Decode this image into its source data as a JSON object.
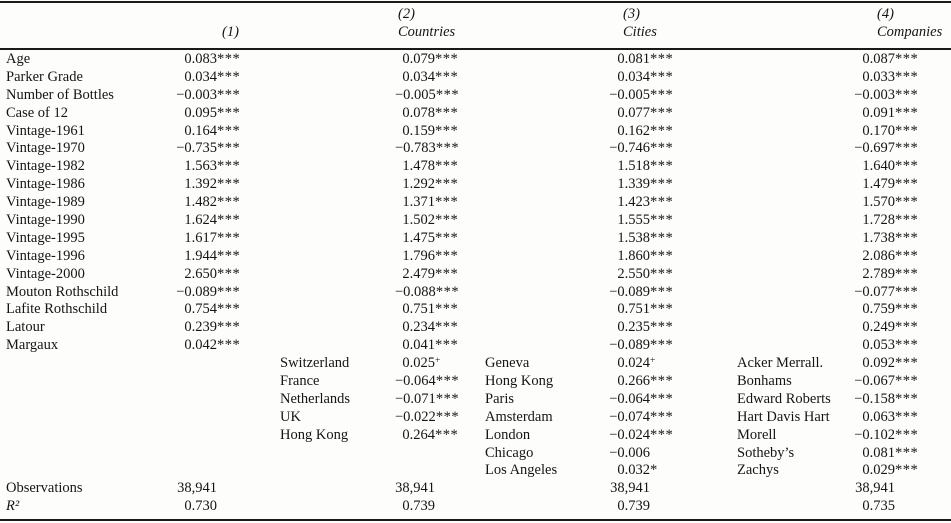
{
  "table": {
    "header": {
      "cols": [
        {
          "num": "(1)",
          "title": ""
        },
        {
          "num": "(2)",
          "title": "Countries"
        },
        {
          "num": "(3)",
          "title": "Cities"
        },
        {
          "num": "(4)",
          "title": "Companies"
        }
      ]
    },
    "rows": [
      {
        "label": "Age",
        "col1": {
          "value": "0.083",
          "stars": "***"
        },
        "col2": {
          "value": "0.079",
          "stars": "***"
        },
        "col3": {
          "value": "0.081",
          "stars": "***"
        },
        "col4": {
          "value": "0.087",
          "stars": "***"
        }
      },
      {
        "label": "Parker Grade",
        "col1": {
          "value": "0.034",
          "stars": "***"
        },
        "col2": {
          "value": "0.034",
          "stars": "***"
        },
        "col3": {
          "value": "0.034",
          "stars": "***"
        },
        "col4": {
          "value": "0.033",
          "stars": "***"
        }
      },
      {
        "label": "Number of Bottles",
        "col1": {
          "value": "−0.003",
          "stars": "***"
        },
        "col2": {
          "value": "−0.005",
          "stars": "***"
        },
        "col3": {
          "value": "−0.005",
          "stars": "***"
        },
        "col4": {
          "value": "−0.003",
          "stars": "***"
        }
      },
      {
        "label": "Case of 12",
        "col1": {
          "value": "0.095",
          "stars": "***"
        },
        "col2": {
          "value": "0.078",
          "stars": "***"
        },
        "col3": {
          "value": "0.077",
          "stars": "***"
        },
        "col4": {
          "value": "0.091",
          "stars": "***"
        }
      },
      {
        "label": "Vintage-1961",
        "col1": {
          "value": "0.164",
          "stars": "***"
        },
        "col2": {
          "value": "0.159",
          "stars": "***"
        },
        "col3": {
          "value": "0.162",
          "stars": "***"
        },
        "col4": {
          "value": "0.170",
          "stars": "***"
        }
      },
      {
        "label": "Vintage-1970",
        "col1": {
          "value": "−0.735",
          "stars": "***"
        },
        "col2": {
          "value": "−0.783",
          "stars": "***"
        },
        "col3": {
          "value": "−0.746",
          "stars": "***"
        },
        "col4": {
          "value": "−0.697",
          "stars": "***"
        }
      },
      {
        "label": "Vintage-1982",
        "col1": {
          "value": "1.563",
          "stars": "***"
        },
        "col2": {
          "value": "1.478",
          "stars": "***"
        },
        "col3": {
          "value": "1.518",
          "stars": "***"
        },
        "col4": {
          "value": "1.640",
          "stars": "***"
        }
      },
      {
        "label": "Vintage-1986",
        "col1": {
          "value": "1.392",
          "stars": "***"
        },
        "col2": {
          "value": "1.292",
          "stars": "***"
        },
        "col3": {
          "value": "1.339",
          "stars": "***"
        },
        "col4": {
          "value": "1.479",
          "stars": "***"
        }
      },
      {
        "label": "Vintage-1989",
        "col1": {
          "value": "1.482",
          "stars": "***"
        },
        "col2": {
          "value": "1.371",
          "stars": "***"
        },
        "col3": {
          "value": "1.423",
          "stars": "***"
        },
        "col4": {
          "value": "1.570",
          "stars": "***"
        }
      },
      {
        "label": "Vintage-1990",
        "col1": {
          "value": "1.624",
          "stars": "***"
        },
        "col2": {
          "value": "1.502",
          "stars": "***"
        },
        "col3": {
          "value": "1.555",
          "stars": "***"
        },
        "col4": {
          "value": "1.728",
          "stars": "***"
        }
      },
      {
        "label": "Vintage-1995",
        "col1": {
          "value": "1.617",
          "stars": "***"
        },
        "col2": {
          "value": "1.475",
          "stars": "***"
        },
        "col3": {
          "value": "1.538",
          "stars": "***"
        },
        "col4": {
          "value": "1.738",
          "stars": "***"
        }
      },
      {
        "label": "Vintage-1996",
        "col1": {
          "value": "1.944",
          "stars": "***"
        },
        "col2": {
          "value": "1.796",
          "stars": "***"
        },
        "col3": {
          "value": "1.860",
          "stars": "***"
        },
        "col4": {
          "value": "2.086",
          "stars": "***"
        }
      },
      {
        "label": "Vintage-2000",
        "col1": {
          "value": "2.650",
          "stars": "***"
        },
        "col2": {
          "value": "2.479",
          "stars": "***"
        },
        "col3": {
          "value": "2.550",
          "stars": "***"
        },
        "col4": {
          "value": "2.789",
          "stars": "***"
        }
      },
      {
        "label": "Mouton Rothschild",
        "col1": {
          "value": "−0.089",
          "stars": "***"
        },
        "col2": {
          "value": "−0.088",
          "stars": "***"
        },
        "col3": {
          "value": "−0.089",
          "stars": "***"
        },
        "col4": {
          "value": "−0.077",
          "stars": "***"
        }
      },
      {
        "label": "Lafite Rothschild",
        "col1": {
          "value": "0.754",
          "stars": "***"
        },
        "col2": {
          "value": "0.751",
          "stars": "***"
        },
        "col3": {
          "value": "0.751",
          "stars": "***"
        },
        "col4": {
          "value": "0.759",
          "stars": "***"
        }
      },
      {
        "label": "Latour",
        "col1": {
          "value": "0.239",
          "stars": "***"
        },
        "col2": {
          "value": "0.234",
          "stars": "***"
        },
        "col3": {
          "value": "0.235",
          "stars": "***"
        },
        "col4": {
          "value": "0.249",
          "stars": "***"
        }
      },
      {
        "label": "Margaux",
        "col1": {
          "value": "0.042",
          "stars": "***"
        },
        "col2": {
          "value": "0.041",
          "stars": "***"
        },
        "col3": {
          "value": "−0.089",
          "stars": "***"
        },
        "col4": {
          "value": "0.053",
          "stars": "***"
        }
      },
      {
        "country": "Switzerland",
        "col2": {
          "value": "0.025",
          "sup": "+"
        },
        "city": "Geneva",
        "col3": {
          "value": "0.024",
          "sup": "+"
        },
        "company": "Acker Merrall.",
        "col4": {
          "value": "0.092",
          "stars": "***"
        }
      },
      {
        "country": "France",
        "col2": {
          "value": "−0.064",
          "stars": "***"
        },
        "city": "Hong Kong",
        "col3": {
          "value": "0.266",
          "stars": "***"
        },
        "company": "Bonhams",
        "col4": {
          "value": "−0.067",
          "stars": "***"
        }
      },
      {
        "country": "Netherlands",
        "col2": {
          "value": "−0.071",
          "stars": "***"
        },
        "city": "Paris",
        "col3": {
          "value": "−0.064",
          "stars": "***"
        },
        "company": "Edward Roberts",
        "col4": {
          "value": "−0.158",
          "stars": "***"
        }
      },
      {
        "country": "UK",
        "col2": {
          "value": "−0.022",
          "stars": "***"
        },
        "city": "Amsterdam",
        "col3": {
          "value": "−0.074",
          "stars": "***"
        },
        "company": "Hart Davis Hart",
        "col4": {
          "value": "0.063",
          "stars": "***"
        }
      },
      {
        "country": "Hong Kong",
        "col2": {
          "value": "0.264",
          "stars": "***"
        },
        "city": "London",
        "col3": {
          "value": "−0.024",
          "stars": "***"
        },
        "company": "Morell",
        "col4": {
          "value": "−0.102",
          "stars": "***"
        }
      },
      {
        "city": "Chicago",
        "col3": {
          "value": "−0.006",
          "stars": ""
        },
        "company": "Sotheby’s",
        "col4": {
          "value": "0.081",
          "stars": "***"
        }
      },
      {
        "city": "Los Angeles",
        "col3": {
          "value": "0.032",
          "stars": "*"
        },
        "company": "Zachys",
        "col4": {
          "value": "0.029",
          "stars": "***"
        }
      },
      {
        "label": "Observations",
        "col1": {
          "value": "38,941"
        },
        "col2": {
          "value": "38,941"
        },
        "col3": {
          "value": "38,941"
        },
        "col4": {
          "value": "38,941"
        }
      },
      {
        "label": "R²",
        "italic": true,
        "col1": {
          "value": "0.730"
        },
        "col2": {
          "value": "0.739"
        },
        "col3": {
          "value": "0.739"
        },
        "col4": {
          "value": "0.735"
        }
      }
    ]
  }
}
